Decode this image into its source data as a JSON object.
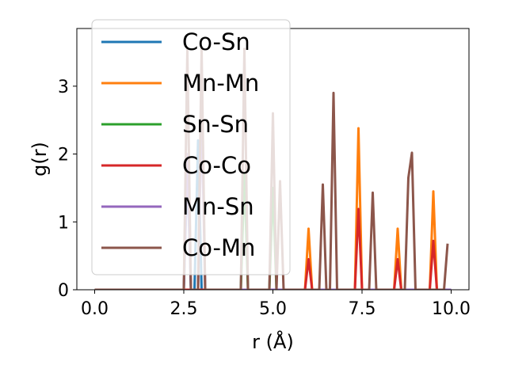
{
  "chart_data": {
    "type": "line",
    "title": "",
    "xlabel": "r (Å)",
    "ylabel": "g(r)",
    "xlim": [
      -0.5,
      10.5
    ],
    "ylim": [
      0,
      3.85
    ],
    "xticks": [
      0.0,
      2.5,
      5.0,
      7.5,
      10.0
    ],
    "xtick_labels": [
      "0.0",
      "2.5",
      "5.0",
      "7.5",
      "10.0"
    ],
    "yticks": [
      0,
      1,
      2,
      3
    ],
    "ytick_labels": [
      "0",
      "1",
      "2",
      "3"
    ],
    "grid": false,
    "legend": {
      "placement": "top-left",
      "entries": [
        "Co-Sn",
        "Mn-Mn",
        "Sn-Sn",
        "Co-Co",
        "Mn-Sn",
        "Co-Mn"
      ]
    },
    "series": [
      {
        "name": "Co-Sn",
        "color": "#1f77b4",
        "x": [
          0,
          2.5,
          2.6,
          2.7,
          2.8,
          2.9,
          3.0,
          3.1,
          3.2,
          10.0
        ],
        "y": [
          0,
          0,
          1.8,
          0,
          0,
          2.2,
          0,
          0,
          0,
          0
        ]
      },
      {
        "name": "Mn-Mn",
        "color": "#ff7f0e",
        "x": [
          0,
          5.9,
          6.0,
          6.1,
          7.3,
          7.4,
          7.5,
          8.4,
          8.5,
          8.6,
          9.4,
          9.5,
          9.6,
          9.8
        ],
        "y": [
          0,
          0,
          0.9,
          0,
          0,
          2.38,
          0,
          0,
          0.9,
          0,
          0,
          1.45,
          0,
          0
        ]
      },
      {
        "name": "Sn-Sn",
        "color": "#2ca02c",
        "x": [
          0,
          4.1,
          4.2,
          4.3,
          4.9,
          5.0,
          5.1,
          10.0
        ],
        "y": [
          0,
          0,
          1.7,
          0,
          0,
          1.5,
          0,
          0
        ]
      },
      {
        "name": "Co-Co",
        "color": "#d62728",
        "x": [
          0,
          5.9,
          6.0,
          6.1,
          7.3,
          7.4,
          7.5,
          8.4,
          8.5,
          8.6,
          9.4,
          9.5,
          9.6,
          9.8
        ],
        "y": [
          0,
          0,
          0.45,
          0,
          0,
          1.19,
          0,
          0,
          0.45,
          0,
          0,
          0.72,
          0,
          0
        ]
      },
      {
        "name": "Mn-Sn",
        "color": "#9467bd",
        "x": [
          0,
          2.5,
          2.6,
          2.7,
          2.9,
          3.0,
          3.1,
          10.0
        ],
        "y": [
          0,
          0,
          2.0,
          0,
          0,
          2.6,
          0,
          0
        ]
      },
      {
        "name": "Co-Mn",
        "color": "#8c564b",
        "x": [
          0,
          2.5,
          2.6,
          2.7,
          2.9,
          3.0,
          3.1,
          4.1,
          4.2,
          4.3,
          4.9,
          5.0,
          5.1,
          5.2,
          5.3,
          6.3,
          6.4,
          6.5,
          6.6,
          6.7,
          6.8,
          7.7,
          7.8,
          7.9,
          8.7,
          8.8,
          8.9,
          9.0,
          9.1,
          9.7,
          9.8,
          9.9
        ],
        "y": [
          0,
          0,
          3.55,
          0,
          0,
          3.55,
          0,
          0,
          3.55,
          0,
          0,
          2.6,
          0,
          1.6,
          0,
          0,
          1.55,
          0,
          0,
          2.9,
          0,
          0,
          1.43,
          0,
          0,
          1.65,
          2.02,
          0,
          0,
          0,
          0,
          0.68
        ]
      }
    ]
  }
}
